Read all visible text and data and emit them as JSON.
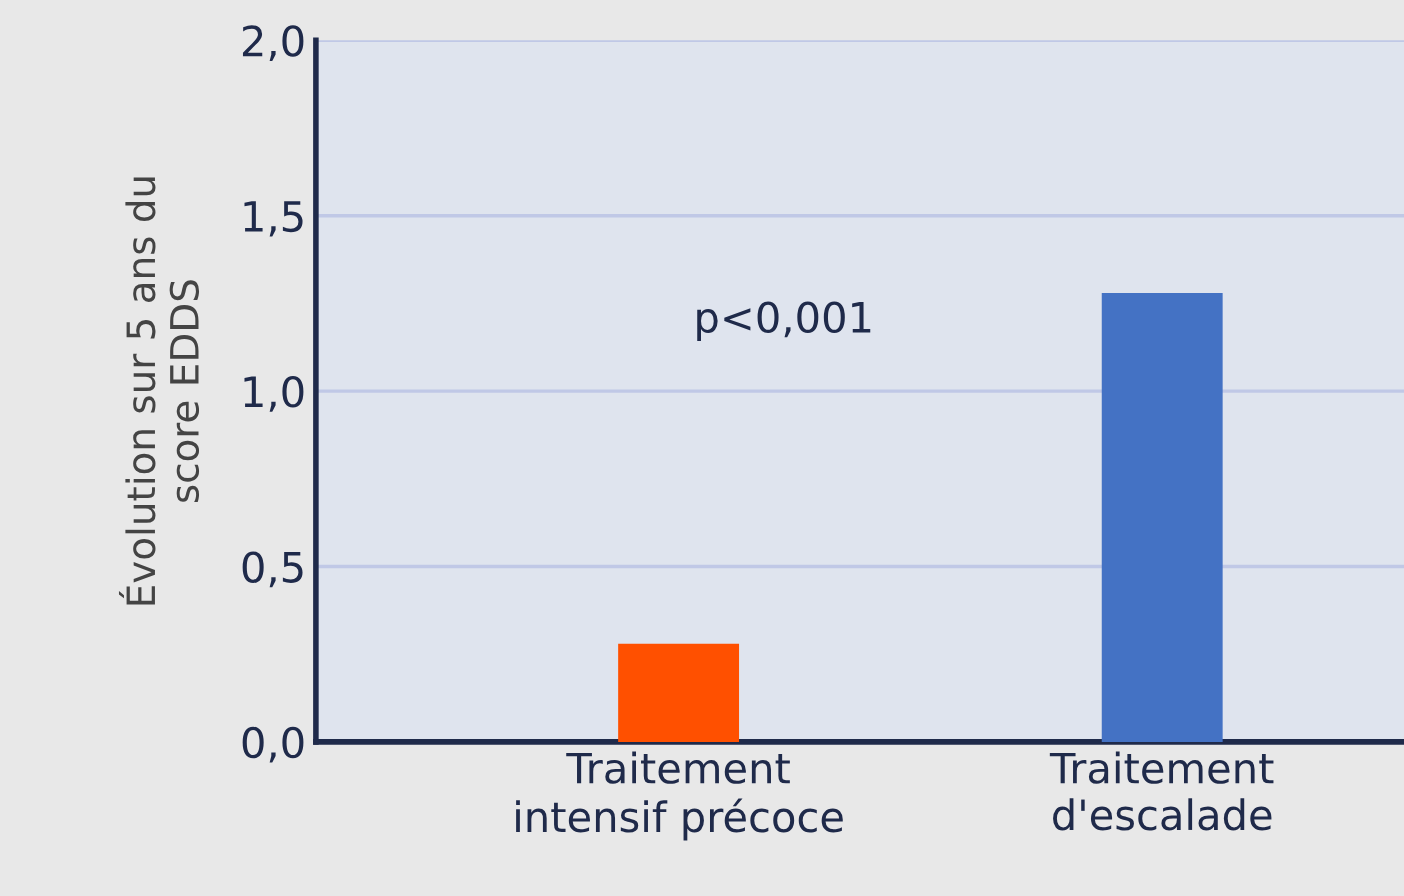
{
  "chart_data": {
    "type": "bar",
    "ylabel": "Évolution sur 5 ans du\nscore EDDS",
    "categories": [
      "Traitement\nintensif précoce",
      "Traitement\nd'escalade"
    ],
    "values": [
      0.28,
      1.28
    ],
    "colors": [
      "#ff5000",
      "#4472c4"
    ],
    "ylim": [
      0,
      2.0
    ],
    "yticks": [
      {
        "value": 0,
        "label": "0,0"
      },
      {
        "value": 0.5,
        "label": "0,5"
      },
      {
        "value": 1.0,
        "label": "1,0"
      },
      {
        "value": 1.5,
        "label": "1,5"
      },
      {
        "value": 2.0,
        "label": "2,0"
      }
    ],
    "grid": "y",
    "annotations": [
      "p<0,001"
    ]
  }
}
